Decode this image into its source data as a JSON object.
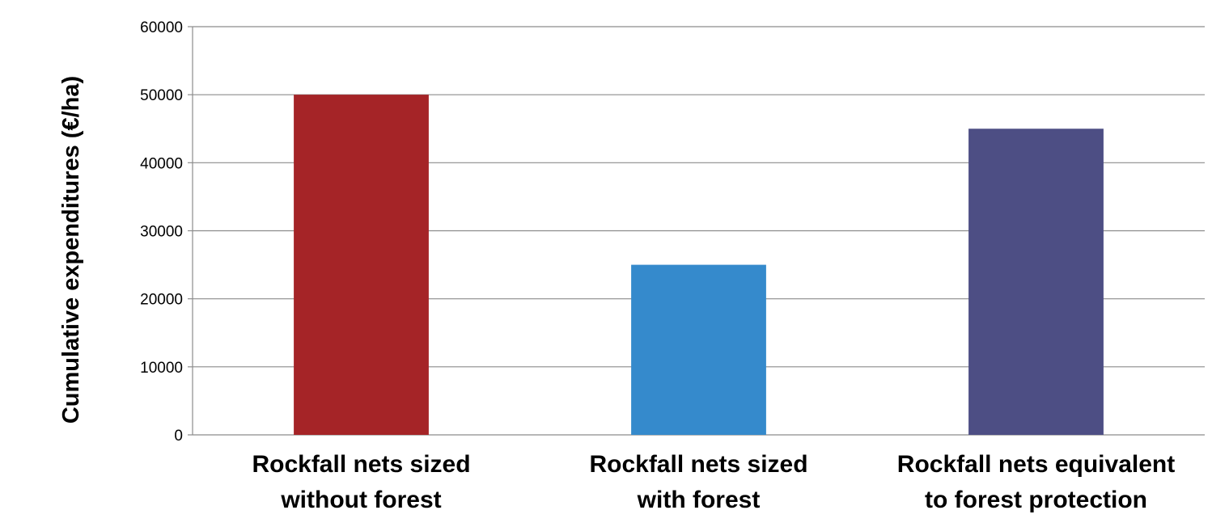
{
  "chart_data": {
    "type": "bar",
    "title": "",
    "xlabel": "",
    "ylabel": "Cumulative expenditures (€/ha)",
    "ylim": [
      0,
      60000
    ],
    "yticks": [
      0,
      10000,
      20000,
      30000,
      40000,
      50000,
      60000
    ],
    "grid": true,
    "legend": "none",
    "categories": [
      [
        "Rockfall nets sized",
        "without forest"
      ],
      [
        "Rockfall nets sized",
        "with forest"
      ],
      [
        "Rockfall nets equivalent",
        "to forest protection"
      ]
    ],
    "values": [
      50000,
      25000,
      45000
    ],
    "colors": [
      "#a52427",
      "#358acc",
      "#4d4e84"
    ]
  }
}
